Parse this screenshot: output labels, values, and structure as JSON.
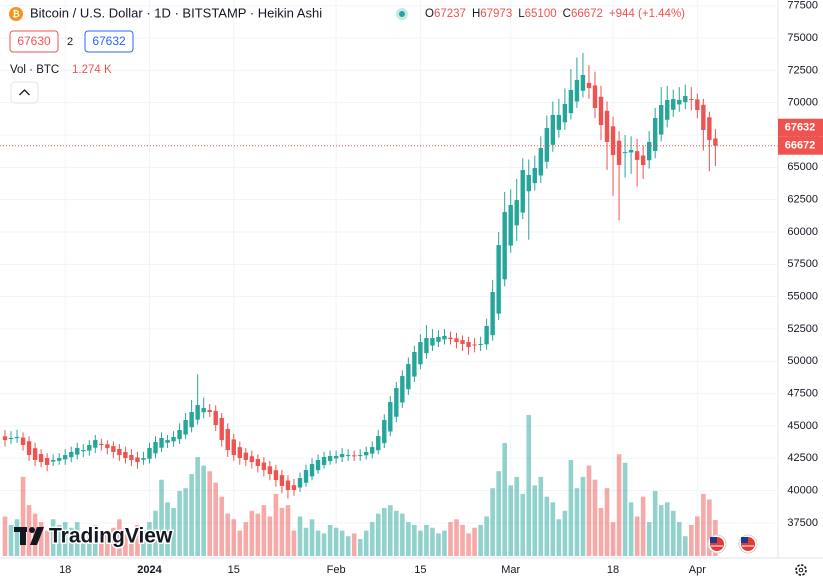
{
  "chart_data": {
    "type": "candlestick",
    "title": "Bitcoin / U.S. Dollar · 1D · BITSTAMP · Heikin Ashi",
    "ohlc_labels": [
      "O",
      "H",
      "L",
      "C"
    ],
    "change": "+944 (+1.44%)",
    "bid": 67630,
    "spread": 2,
    "ask": 67632,
    "volume_title": "Vol · BTC",
    "volume_label": "1.274 K",
    "logo_text": "TradingView",
    "up_color": "#26a69a",
    "down_color": "#ef5350",
    "grid": true,
    "xlim": [
      -0.83,
      128.4
    ],
    "xticks": [
      {
        "value": 10,
        "label": "18"
      },
      {
        "value": 24,
        "label": "2024"
      },
      {
        "value": 38,
        "label": "15"
      },
      {
        "value": 55,
        "label": "Feb"
      },
      {
        "value": 69,
        "label": "15"
      },
      {
        "value": 84,
        "label": "Mar"
      },
      {
        "value": 101,
        "label": "18"
      },
      {
        "value": 115,
        "label": "Apr"
      }
    ],
    "ylim": [
      34790,
      77940
    ],
    "yticks": [
      37500,
      40000,
      42500,
      45000,
      47500,
      50000,
      52500,
      55000,
      57500,
      60000,
      62500,
      65000,
      67500,
      70000,
      72500,
      75000,
      77500
    ],
    "vlim": [
      0,
      8000
    ],
    "candles": [
      [
        44200,
        44700,
        43400,
        43910
      ],
      [
        44060,
        44600,
        43600,
        44070
      ],
      [
        44060,
        44700,
        43700,
        44150
      ],
      [
        44100,
        44500,
        43100,
        43530
      ],
      [
        43820,
        44200,
        42300,
        42750
      ],
      [
        43280,
        43700,
        41900,
        42370
      ],
      [
        42830,
        43200,
        41800,
        42210
      ],
      [
        42520,
        42900,
        41500,
        41980
      ],
      [
        42250,
        42800,
        41900,
        42370
      ],
      [
        42310,
        42900,
        42000,
        42520
      ],
      [
        42420,
        43200,
        42000,
        42750
      ],
      [
        42590,
        43400,
        42200,
        42990
      ],
      [
        42790,
        43700,
        42400,
        43300
      ],
      [
        43050,
        43600,
        42600,
        43140
      ],
      [
        43100,
        43900,
        42700,
        43530
      ],
      [
        43320,
        44300,
        42900,
        43910
      ],
      [
        43620,
        44000,
        43100,
        43530
      ],
      [
        43580,
        43900,
        42800,
        43300
      ],
      [
        43440,
        43800,
        42500,
        42990
      ],
      [
        43220,
        43600,
        42300,
        42750
      ],
      [
        42990,
        43400,
        42100,
        42520
      ],
      [
        42760,
        43200,
        41900,
        42370
      ],
      [
        42570,
        43000,
        41700,
        42210
      ],
      [
        42390,
        43000,
        42000,
        42520
      ],
      [
        42460,
        43700,
        42100,
        43300
      ],
      [
        42880,
        44200,
        42500,
        43760
      ],
      [
        43320,
        44500,
        43000,
        44070
      ],
      [
        43700,
        44300,
        43300,
        43910
      ],
      [
        43810,
        44600,
        43400,
        44150
      ],
      [
        43980,
        45200,
        43600,
        44690
      ],
      [
        44340,
        46000,
        44000,
        45460
      ],
      [
        44900,
        47000,
        44500,
        46080
      ],
      [
        45490,
        49000,
        45100,
        46620
      ],
      [
        46060,
        47200,
        45600,
        46390
      ],
      [
        46230,
        46700,
        45700,
        46080
      ],
      [
        46160,
        46600,
        44600,
        45070
      ],
      [
        45620,
        46000,
        43400,
        43910
      ],
      [
        44770,
        45200,
        42600,
        43140
      ],
      [
        43960,
        44400,
        42300,
        42750
      ],
      [
        43360,
        43800,
        42000,
        42520
      ],
      [
        42940,
        43300,
        41900,
        42370
      ],
      [
        42660,
        43100,
        41700,
        42210
      ],
      [
        42440,
        42800,
        41400,
        41900
      ],
      [
        42170,
        42600,
        41100,
        41590
      ],
      [
        41880,
        42300,
        40800,
        41280
      ],
      [
        41580,
        42000,
        40300,
        40820
      ],
      [
        41200,
        41600,
        39800,
        40360
      ],
      [
        40780,
        41200,
        39400,
        40050
      ],
      [
        40420,
        40900,
        39600,
        40050
      ],
      [
        40240,
        41400,
        39900,
        40970
      ],
      [
        40610,
        42000,
        40300,
        41590
      ],
      [
        41100,
        42500,
        40800,
        42060
      ],
      [
        41580,
        42800,
        41300,
        42370
      ],
      [
        41980,
        43000,
        41700,
        42600
      ],
      [
        42290,
        43100,
        42000,
        42680
      ],
      [
        42490,
        43100,
        42100,
        42680
      ],
      [
        42590,
        43300,
        42200,
        42830
      ],
      [
        42710,
        43200,
        42300,
        42750
      ],
      [
        42730,
        43100,
        42300,
        42680
      ],
      [
        42710,
        43200,
        42300,
        42750
      ],
      [
        42730,
        43400,
        42400,
        42990
      ],
      [
        42860,
        43800,
        42500,
        43370
      ],
      [
        43120,
        44700,
        42800,
        44220
      ],
      [
        43670,
        45900,
        43300,
        45460
      ],
      [
        44570,
        47300,
        44200,
        46850
      ],
      [
        45710,
        48400,
        45300,
        47930
      ],
      [
        46820,
        49300,
        46400,
        48860
      ],
      [
        47840,
        50300,
        47400,
        49790
      ],
      [
        48820,
        51200,
        48400,
        50720
      ],
      [
        49770,
        52100,
        49400,
        51490
      ],
      [
        50630,
        52800,
        50200,
        51800
      ],
      [
        51220,
        52500,
        50800,
        51800
      ],
      [
        51510,
        52400,
        51100,
        51880
      ],
      [
        51700,
        52500,
        51300,
        51960
      ],
      [
        51830,
        52300,
        51300,
        51720
      ],
      [
        51780,
        52200,
        51000,
        51490
      ],
      [
        51640,
        52000,
        50800,
        51340
      ],
      [
        51490,
        51900,
        50500,
        51110
      ],
      [
        51300,
        51800,
        50700,
        51260
      ],
      [
        51280,
        51900,
        50800,
        51340
      ],
      [
        51310,
        53300,
        50900,
        52730
      ],
      [
        52020,
        56300,
        51600,
        55360
      ],
      [
        53690,
        60000,
        53200,
        58990
      ],
      [
        56340,
        63100,
        55800,
        61550
      ],
      [
        58950,
        63300,
        58400,
        62090
      ],
      [
        60520,
        64100,
        59300,
        62470
      ],
      [
        61500,
        65700,
        61000,
        64790
      ],
      [
        63150,
        65600,
        59400,
        64410
      ],
      [
        63780,
        65900,
        63200,
        64950
      ],
      [
        64370,
        67400,
        63800,
        66490
      ],
      [
        65430,
        69000,
        64900,
        68040
      ],
      [
        66740,
        70100,
        66200,
        69050
      ],
      [
        67900,
        70300,
        67300,
        69050
      ],
      [
        68480,
        71100,
        67900,
        69900
      ],
      [
        69190,
        72600,
        68700,
        70980
      ],
      [
        70090,
        73500,
        69600,
        71750
      ],
      [
        70920,
        73840,
        70400,
        72140
      ],
      [
        71530,
        72900,
        70300,
        71130
      ],
      [
        71330,
        72400,
        68800,
        69590
      ],
      [
        70460,
        71300,
        67100,
        68270
      ],
      [
        69370,
        70100,
        64800,
        66960
      ],
      [
        68170,
        68900,
        62800,
        65950
      ],
      [
        67060,
        67800,
        60900,
        65180
      ],
      [
        66120,
        67500,
        64200,
        66180
      ],
      [
        66150,
        67400,
        64500,
        66340
      ],
      [
        66250,
        67200,
        63500,
        65570
      ],
      [
        65910,
        66700,
        64100,
        65180
      ],
      [
        65550,
        67800,
        64900,
        66960
      ],
      [
        66260,
        69600,
        65700,
        68810
      ],
      [
        67540,
        71200,
        67000,
        69820
      ],
      [
        68680,
        71300,
        68100,
        70210
      ],
      [
        69450,
        71000,
        68900,
        70280
      ],
      [
        69870,
        71200,
        69300,
        70210
      ],
      [
        70040,
        71400,
        69500,
        70520
      ],
      [
        70280,
        71200,
        69400,
        70210
      ],
      [
        70250,
        70700,
        68800,
        69430
      ],
      [
        69840,
        70300,
        66300,
        67890
      ],
      [
        68870,
        69300,
        64700,
        67110
      ],
      [
        67237,
        67973,
        65100,
        66672
      ]
    ],
    "volumes": [
      1400,
      1100,
      1300,
      2800,
      1800,
      1500,
      1200,
      900,
      1300,
      1100,
      1200,
      1000,
      1200,
      800,
      900,
      1100,
      700,
      900,
      1000,
      1300,
      1000,
      800,
      1100,
      900,
      1200,
      1600,
      2700,
      1900,
      1700,
      2300,
      2400,
      2900,
      3500,
      3200,
      3000,
      2600,
      2100,
      1500,
      1300,
      900,
      1200,
      1600,
      1500,
      1800,
      1400,
      2200,
      1700,
      1800,
      900,
      1400,
      1000,
      1300,
      900,
      800,
      1100,
      1000,
      900,
      700,
      800,
      600,
      900,
      1200,
      1500,
      1700,
      1800,
      1600,
      1500,
      1200,
      1100,
      900,
      1100,
      1000,
      800,
      900,
      1200,
      1300,
      1100,
      800,
      1000,
      1100,
      1400,
      2400,
      3000,
      4000,
      2500,
      2800,
      2200,
      4990,
      2500,
      2800,
      2100,
      1900,
      1300,
      1600,
      3400,
      2400,
      2800,
      3200,
      2700,
      1700,
      2400,
      1200,
      3600,
      3300,
      1900,
      1400,
      2100,
      1200,
      2300,
      1800,
      1900,
      1600,
      1200,
      700,
      1100,
      1400,
      2200,
      2000,
      1274
    ]
  }
}
